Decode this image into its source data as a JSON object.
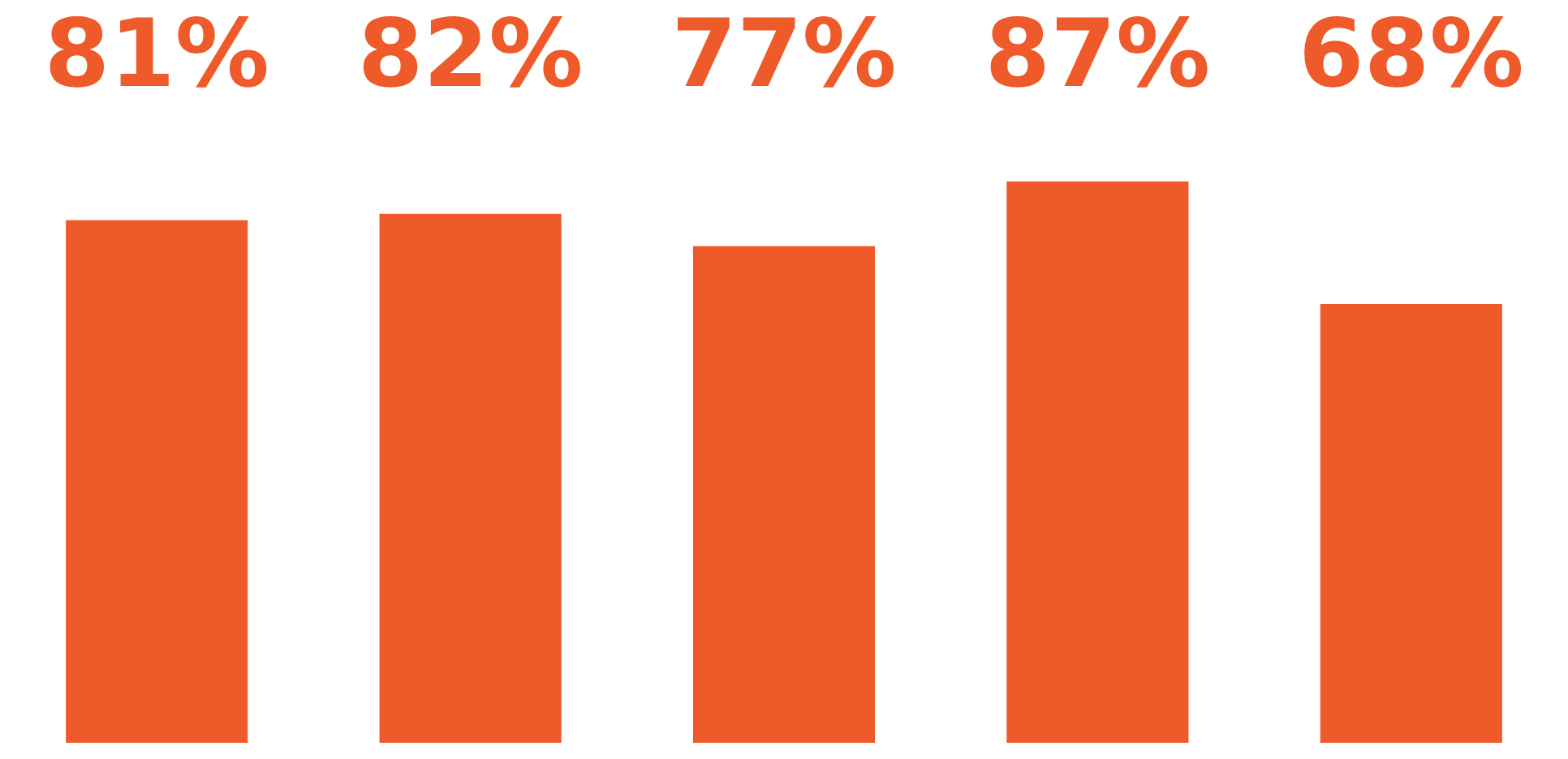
{
  "chart_data": {
    "type": "bar",
    "categories": [
      null,
      null,
      null,
      null,
      null
    ],
    "values": [
      81,
      82,
      77,
      87,
      68
    ],
    "color": "#ee5a29",
    "value_labels": [
      "81%",
      "82%",
      "77%",
      "87%",
      "68%"
    ],
    "tick_labels": false,
    "grid": false,
    "legend": false
  }
}
